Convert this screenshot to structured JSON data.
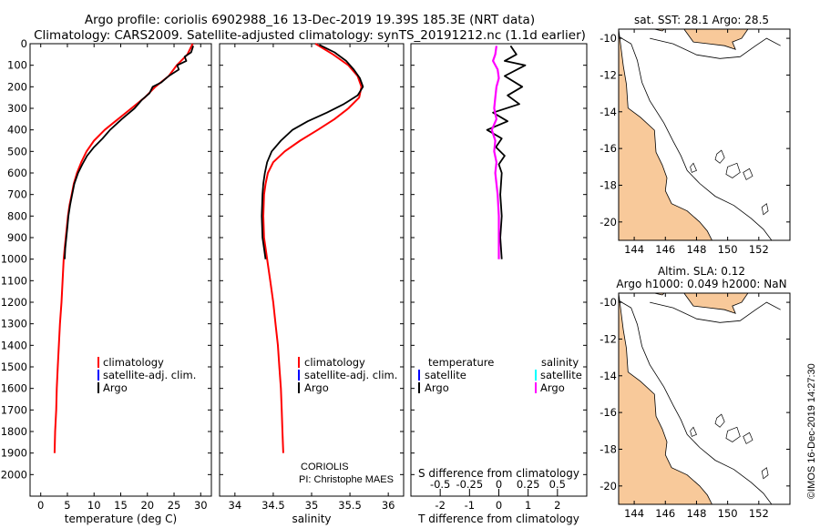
{
  "title": {
    "line1": "Argo profile: coriolis 6902988_16 13-Dec-2019 19.39S 185.3E (NRT data)",
    "line2": "Climatology: CARS2009. Satellite-adjusted climatology: synTS_20191212.nc (1.1d earlier)"
  },
  "colors": {
    "climatology": "#ff0000",
    "satellite": "#0000ff",
    "argo": "#000000",
    "sat_salinity": "#00ffff",
    "argo_salinity_diff": "#ff00ff",
    "land": "#f8c99a"
  },
  "chart_data": [
    {
      "id": "temperature",
      "type": "line",
      "xlabel": "temperature (deg C)",
      "ylabel": "",
      "xlim": [
        -2,
        32
      ],
      "ylim": [
        2100,
        0
      ],
      "xticks": [
        0,
        5,
        10,
        15,
        20,
        25,
        30
      ],
      "yticks": [
        0,
        100,
        200,
        300,
        400,
        500,
        600,
        700,
        800,
        900,
        1000,
        1100,
        1200,
        1300,
        1400,
        1500,
        1600,
        1700,
        1800,
        1900,
        2000
      ],
      "legend": {
        "position": "lower-right",
        "entries": [
          "climatology",
          "satellite-adj. clim.",
          "Argo"
        ]
      },
      "series": [
        {
          "name": "climatology",
          "color": "#ff0000",
          "points": [
            [
              28.5,
              0
            ],
            [
              27.5,
              50
            ],
            [
              25.5,
              100
            ],
            [
              24,
              150
            ],
            [
              21.5,
              200
            ],
            [
              19.5,
              250
            ],
            [
              17,
              300
            ],
            [
              14.5,
              350
            ],
            [
              12,
              400
            ],
            [
              10,
              450
            ],
            [
              8.6,
              500
            ],
            [
              7.6,
              550
            ],
            [
              6.8,
              600
            ],
            [
              6.2,
              650
            ],
            [
              5.8,
              700
            ],
            [
              5.4,
              750
            ],
            [
              5.1,
              800
            ],
            [
              4.9,
              850
            ],
            [
              4.7,
              900
            ],
            [
              4.5,
              950
            ],
            [
              4.3,
              1000
            ],
            [
              4.1,
              1100
            ],
            [
              3.9,
              1200
            ],
            [
              3.6,
              1300
            ],
            [
              3.4,
              1400
            ],
            [
              3.2,
              1500
            ],
            [
              3.0,
              1600
            ],
            [
              2.9,
              1700
            ],
            [
              2.7,
              1800
            ],
            [
              2.6,
              1900
            ]
          ]
        },
        {
          "name": "Argo",
          "color": "#000000",
          "points": [
            [
              28.6,
              10
            ],
            [
              28.2,
              40
            ],
            [
              27.0,
              60
            ],
            [
              27.3,
              80
            ],
            [
              25.6,
              100
            ],
            [
              25.9,
              120
            ],
            [
              24.0,
              150
            ],
            [
              22.6,
              180
            ],
            [
              21.0,
              200
            ],
            [
              20.4,
              230
            ],
            [
              19.0,
              260
            ],
            [
              17.6,
              300
            ],
            [
              15.2,
              350
            ],
            [
              13.0,
              400
            ],
            [
              11.6,
              440
            ],
            [
              10.0,
              480
            ],
            [
              8.7,
              520
            ],
            [
              7.8,
              560
            ],
            [
              7.0,
              600
            ],
            [
              6.3,
              650
            ],
            [
              5.9,
              700
            ],
            [
              5.5,
              750
            ],
            [
              5.2,
              800
            ],
            [
              5.0,
              850
            ],
            [
              4.8,
              900
            ],
            [
              4.6,
              950
            ],
            [
              4.5,
              1000
            ]
          ]
        }
      ]
    },
    {
      "id": "salinity",
      "type": "line",
      "xlabel": "salinity",
      "ylabel": "",
      "xlim": [
        33.8,
        36.2
      ],
      "ylim": [
        2100,
        0
      ],
      "xticks": [
        34,
        34.5,
        35,
        35.5,
        36
      ],
      "legend": {
        "position": "lower-right",
        "entries": [
          "climatology",
          "satellite-adj. clim.",
          "Argo"
        ]
      },
      "annotation": {
        "agency": "CORIOLIS",
        "pi": "PI: Christophe MAES"
      },
      "series": [
        {
          "name": "climatology",
          "color": "#ff0000",
          "points": [
            [
              35.05,
              0
            ],
            [
              35.28,
              50
            ],
            [
              35.48,
              100
            ],
            [
              35.6,
              150
            ],
            [
              35.65,
              200
            ],
            [
              35.62,
              250
            ],
            [
              35.48,
              300
            ],
            [
              35.3,
              350
            ],
            [
              35.08,
              400
            ],
            [
              34.85,
              450
            ],
            [
              34.65,
              500
            ],
            [
              34.5,
              550
            ],
            [
              34.43,
              600
            ],
            [
              34.4,
              650
            ],
            [
              34.38,
              700
            ],
            [
              34.37,
              800
            ],
            [
              34.38,
              900
            ],
            [
              34.42,
              1000
            ],
            [
              34.46,
              1100
            ],
            [
              34.5,
              1200
            ],
            [
              34.53,
              1300
            ],
            [
              34.56,
              1400
            ],
            [
              34.58,
              1500
            ],
            [
              34.6,
              1600
            ],
            [
              34.61,
              1700
            ],
            [
              34.62,
              1800
            ],
            [
              34.63,
              1900
            ]
          ]
        },
        {
          "name": "Argo",
          "color": "#000000",
          "points": [
            [
              35.1,
              5
            ],
            [
              35.3,
              40
            ],
            [
              35.45,
              80
            ],
            [
              35.55,
              120
            ],
            [
              35.63,
              160
            ],
            [
              35.67,
              200
            ],
            [
              35.6,
              240
            ],
            [
              35.42,
              280
            ],
            [
              35.2,
              320
            ],
            [
              34.95,
              360
            ],
            [
              34.75,
              400
            ],
            [
              34.6,
              450
            ],
            [
              34.48,
              500
            ],
            [
              34.42,
              550
            ],
            [
              34.39,
              600
            ],
            [
              34.37,
              650
            ],
            [
              34.36,
              700
            ],
            [
              34.35,
              800
            ],
            [
              34.36,
              900
            ],
            [
              34.38,
              950
            ],
            [
              34.4,
              1000
            ]
          ]
        }
      ]
    },
    {
      "id": "difference",
      "type": "line",
      "xlabel": "T difference from climatology",
      "x2label": "S difference from climatology",
      "xlim": [
        -3,
        3
      ],
      "xticks": [
        -2,
        -1,
        0,
        1,
        2
      ],
      "x2ticks": [
        -0.5,
        -0.25,
        0,
        0.25,
        0.5
      ],
      "x2ticklabels": [
        "-0.5",
        "-0.25",
        "0",
        "0.25",
        "0.5"
      ],
      "x2lim": [
        -0.75,
        0.75
      ],
      "ylim": [
        2100,
        0
      ],
      "legend": {
        "position": "lower",
        "groups": [
          {
            "heading": "temperature",
            "entries": [
              "satellite",
              "Argo"
            ]
          },
          {
            "heading": "salinity",
            "entries": [
              "satellite",
              "Argo"
            ]
          }
        ]
      },
      "series": [
        {
          "name": "Argo",
          "quantity": "temperature",
          "color": "#000000",
          "points": [
            [
              0.4,
              10
            ],
            [
              0.6,
              50
            ],
            [
              0.2,
              80
            ],
            [
              0.9,
              100
            ],
            [
              0.2,
              150
            ],
            [
              0.8,
              200
            ],
            [
              0.3,
              240
            ],
            [
              0.7,
              280
            ],
            [
              -0.2,
              320
            ],
            [
              0.3,
              360
            ],
            [
              -0.4,
              400
            ],
            [
              0.1,
              440
            ],
            [
              -0.1,
              480
            ],
            [
              0.2,
              520
            ],
            [
              0.0,
              560
            ],
            [
              0.1,
              600
            ],
            [
              0.05,
              700
            ],
            [
              0.1,
              800
            ],
            [
              0.05,
              900
            ],
            [
              0.1,
              1000
            ]
          ]
        },
        {
          "name": "Argo",
          "quantity": "salinity",
          "color": "#ff00ff",
          "points": [
            [
              -0.02,
              10
            ],
            [
              -0.03,
              50
            ],
            [
              -0.05,
              80
            ],
            [
              -0.01,
              120
            ],
            [
              0.0,
              160
            ],
            [
              -0.02,
              200
            ],
            [
              -0.03,
              250
            ],
            [
              -0.04,
              300
            ],
            [
              -0.02,
              350
            ],
            [
              -0.06,
              400
            ],
            [
              -0.03,
              450
            ],
            [
              -0.04,
              500
            ],
            [
              -0.02,
              550
            ],
            [
              -0.03,
              600
            ],
            [
              -0.01,
              700
            ],
            [
              0.0,
              800
            ],
            [
              0.0,
              900
            ],
            [
              0.0,
              1000
            ]
          ]
        }
      ]
    },
    {
      "id": "sst-map",
      "type": "map",
      "title": "sat. SST: 28.1 Argo: 28.5",
      "xticks": [
        144,
        146,
        148,
        150,
        152
      ],
      "yticks": [
        -10,
        -12,
        -14,
        -16,
        -18,
        -20
      ],
      "xlim": [
        143,
        154
      ],
      "ylim": [
        -21,
        -9.5
      ]
    },
    {
      "id": "sla-map",
      "type": "map",
      "title_line1": "Altim. SLA: 0.12",
      "title_line2": "Argo h1000: 0.049 h2000: NaN",
      "xticks": [
        144,
        146,
        148,
        150,
        152
      ],
      "yticks": [
        -10,
        -12,
        -14,
        -16,
        -18,
        -20
      ],
      "xlim": [
        143,
        154
      ],
      "ylim": [
        -21,
        -9.5
      ]
    }
  ],
  "legend_labels": {
    "climatology": "climatology",
    "satellite_adj": "satellite-adj. clim.",
    "argo": "Argo",
    "temperature": "temperature",
    "salinity": "salinity",
    "satellite": "satellite"
  },
  "watermark": "©IMOS 16-Dec-2019 14:27:30"
}
